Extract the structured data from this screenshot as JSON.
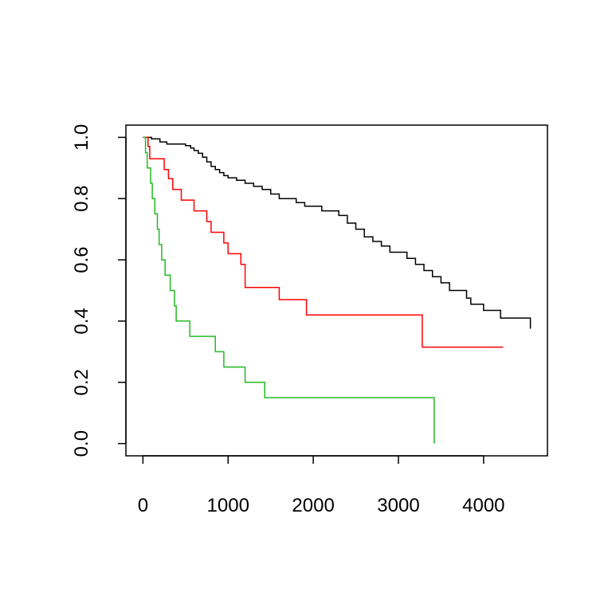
{
  "chart_data": {
    "type": "line",
    "step": true,
    "title": "",
    "xlabel": "",
    "ylabel": "",
    "xlim": [
      -200,
      4750
    ],
    "ylim": [
      -0.04,
      1.04
    ],
    "xticks": [
      0,
      1000,
      2000,
      3000,
      4000
    ],
    "xtick_labels": [
      "0",
      "1000",
      "2000",
      "3000",
      "4000"
    ],
    "yticks": [
      0.0,
      0.2,
      0.4,
      0.6,
      0.8,
      1.0
    ],
    "ytick_labels": [
      "0.0",
      "0.2",
      "0.4",
      "0.6",
      "0.8",
      "1.0"
    ],
    "grid": false,
    "legend": "none",
    "series": [
      {
        "color": "#000000",
        "x": [
          0,
          100,
          200,
          280,
          500,
          560,
          600,
          650,
          700,
          750,
          800,
          850,
          900,
          950,
          1000,
          1100,
          1200,
          1300,
          1400,
          1500,
          1600,
          1800,
          1900,
          2100,
          2300,
          2400,
          2500,
          2600,
          2700,
          2800,
          2900,
          3100,
          3200,
          3300,
          3400,
          3500,
          3600,
          3800,
          3850,
          4000,
          4200,
          4550
        ],
        "y": [
          1.0,
          0.995,
          0.985,
          0.978,
          0.973,
          0.965,
          0.957,
          0.948,
          0.935,
          0.92,
          0.905,
          0.895,
          0.885,
          0.875,
          0.868,
          0.86,
          0.85,
          0.84,
          0.83,
          0.815,
          0.8,
          0.787,
          0.775,
          0.76,
          0.745,
          0.72,
          0.7,
          0.675,
          0.66,
          0.645,
          0.625,
          0.605,
          0.585,
          0.565,
          0.545,
          0.525,
          0.5,
          0.475,
          0.455,
          0.435,
          0.41,
          0.375
        ]
      },
      {
        "color": "#ff0000",
        "x": [
          0,
          60,
          80,
          250,
          300,
          350,
          450,
          600,
          750,
          800,
          950,
          1000,
          1150,
          1200,
          1600,
          1920,
          3280,
          4230
        ],
        "y": [
          1.0,
          0.97,
          0.93,
          0.895,
          0.865,
          0.83,
          0.795,
          0.76,
          0.725,
          0.69,
          0.655,
          0.62,
          0.585,
          0.51,
          0.47,
          0.42,
          0.315,
          0.315
        ]
      },
      {
        "color": "#22bb22",
        "x": [
          0,
          30,
          50,
          90,
          110,
          140,
          170,
          190,
          220,
          260,
          320,
          370,
          390,
          550,
          850,
          950,
          1200,
          1430,
          3420,
          3420
        ],
        "y": [
          1.0,
          0.95,
          0.9,
          0.85,
          0.8,
          0.75,
          0.7,
          0.65,
          0.6,
          0.55,
          0.5,
          0.45,
          0.4,
          0.35,
          0.3,
          0.25,
          0.2,
          0.15,
          0.075,
          0.0
        ]
      }
    ]
  }
}
